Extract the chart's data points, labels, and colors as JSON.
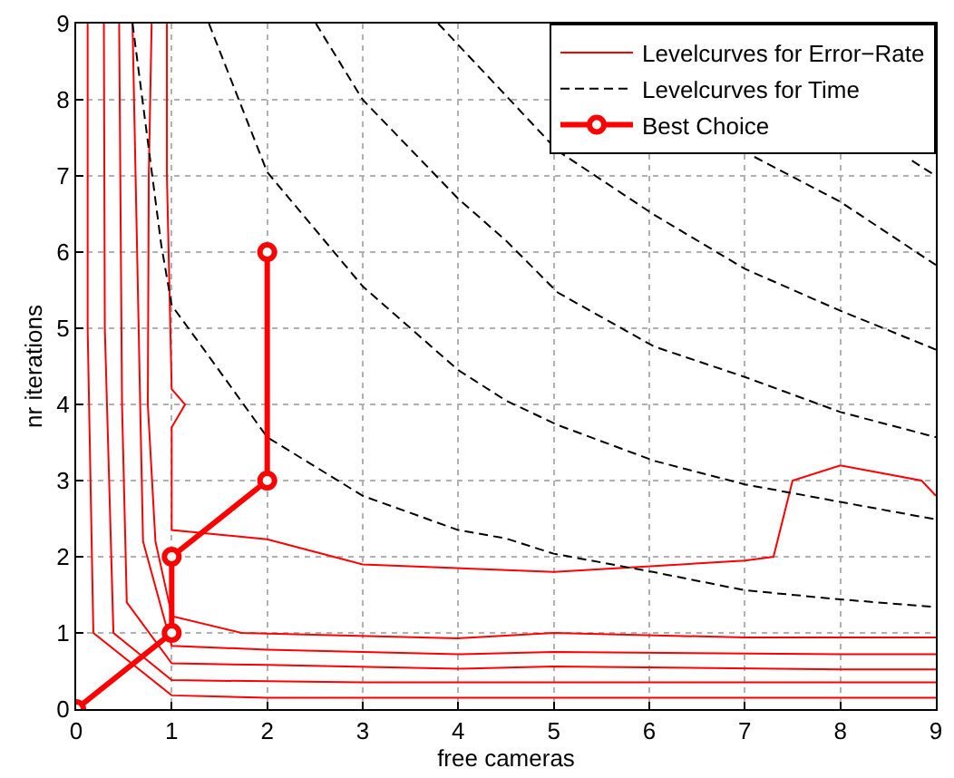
{
  "chart_data": {
    "type": "line",
    "xlabel": "free cameras",
    "ylabel": "nr iterations",
    "xlim": [
      0,
      9
    ],
    "ylim": [
      0,
      9
    ],
    "xticks": [
      0,
      1,
      2,
      3,
      4,
      5,
      6,
      7,
      8,
      9
    ],
    "yticks": [
      0,
      1,
      2,
      3,
      4,
      5,
      6,
      7,
      8,
      9
    ],
    "grid": true,
    "legend": "top right",
    "series": [
      {
        "name": "Levelcurves for Error−Rate",
        "color": "#ff0000",
        "line_style": "solid",
        "marker": "none",
        "x": [
          0.12,
          0.12,
          0.18,
          1,
          2,
          9
        ],
        "values": [
          9,
          5,
          1.0,
          0.18,
          0.15,
          0.15
        ]
      },
      {
        "color": "#ff0000",
        "line_style": "solid",
        "marker": "none",
        "x": [
          0.29,
          0.3,
          0.39,
          1,
          3,
          9
        ],
        "values": [
          9,
          5,
          1.0,
          0.38,
          0.35,
          0.35
        ]
      },
      {
        "color": "#ff0000",
        "line_style": "solid",
        "marker": "none",
        "x": [
          0.45,
          0.48,
          0.53,
          1,
          2,
          4,
          5,
          8,
          9
        ],
        "values": [
          9,
          4,
          1.4,
          0.6,
          0.58,
          0.53,
          0.56,
          0.52,
          0.52
        ]
      },
      {
        "color": "#ff0000",
        "line_style": "solid",
        "marker": "none",
        "x": [
          0.59,
          0.67,
          0.7,
          1,
          2,
          4,
          5,
          8,
          9
        ],
        "values": [
          9,
          4,
          2.2,
          0.83,
          0.78,
          0.72,
          0.75,
          0.72,
          0.72
        ]
      },
      {
        "color": "#ff0000",
        "line_style": "solid",
        "marker": "none",
        "x": [
          0.79,
          0.76,
          0.75,
          0.83,
          0.98,
          1,
          1.73,
          4,
          5,
          7,
          9
        ],
        "values": [
          9,
          7,
          4,
          2.2,
          1.35,
          1.22,
          1.0,
          0.93,
          1.0,
          0.94,
          0.94
        ]
      },
      {
        "color": "#ff0000",
        "line_style": "solid",
        "marker": "none",
        "x": [
          0.95,
          0.95,
          1,
          1.14,
          1,
          1,
          2,
          3,
          5,
          7,
          7.3,
          7.5,
          8,
          8.85,
          9
        ],
        "values": [
          9,
          7,
          4.2,
          4.0,
          3.7,
          2.35,
          2.23,
          1.9,
          1.8,
          1.95,
          2.0,
          3.0,
          3.2,
          3.0,
          2.8
        ]
      },
      {
        "name": "Levelcurves for Time",
        "color": "#000000",
        "line_style": "dashed",
        "marker": "none",
        "x": [
          0.59,
          0.89,
          1.0,
          1.35,
          2,
          3,
          4,
          4.5,
          5,
          6.04,
          7,
          8,
          9
        ],
        "values": [
          9,
          6.1,
          5.3,
          4.7,
          3.57,
          2.8,
          2.35,
          2.24,
          2.04,
          1.8,
          1.56,
          1.44,
          1.34
        ]
      },
      {
        "color": "#000000",
        "line_style": "dashed",
        "marker": "none",
        "x": [
          1.39,
          2,
          3,
          4,
          4.5,
          5.04,
          6.05,
          7,
          8,
          9
        ],
        "values": [
          9,
          7.05,
          5.55,
          4.45,
          4.05,
          3.73,
          3.26,
          2.95,
          2.72,
          2.49
        ]
      },
      {
        "color": "#000000",
        "line_style": "dashed",
        "marker": "none",
        "x": [
          2.51,
          3,
          4,
          4.5,
          5.04,
          6.05,
          7,
          8,
          9
        ],
        "values": [
          9,
          8.0,
          6.7,
          6.15,
          5.47,
          4.76,
          4.36,
          3.9,
          3.57
        ]
      },
      {
        "color": "#000000",
        "line_style": "dashed",
        "marker": "none",
        "x": [
          3.79,
          4.48,
          5.04,
          6.05,
          7,
          8,
          9
        ],
        "values": [
          9,
          8.08,
          7.33,
          6.49,
          5.78,
          5.23,
          4.72
        ]
      },
      {
        "color": "#000000",
        "line_style": "dashed",
        "marker": "none",
        "x": [
          7.1,
          8,
          9
        ],
        "values": [
          7.25,
          6.66,
          5.83
        ]
      },
      {
        "color": "#000000",
        "line_style": "dashed",
        "marker": "none",
        "x": [
          8.75,
          9
        ],
        "values": [
          7.2,
          7.0
        ]
      },
      {
        "name": "Best Choice",
        "color": "#ff0000",
        "line_style": "solid",
        "marker": "circle",
        "x": [
          0,
          1,
          1,
          2,
          2
        ],
        "values": [
          0,
          1,
          2,
          3,
          6
        ]
      }
    ]
  }
}
